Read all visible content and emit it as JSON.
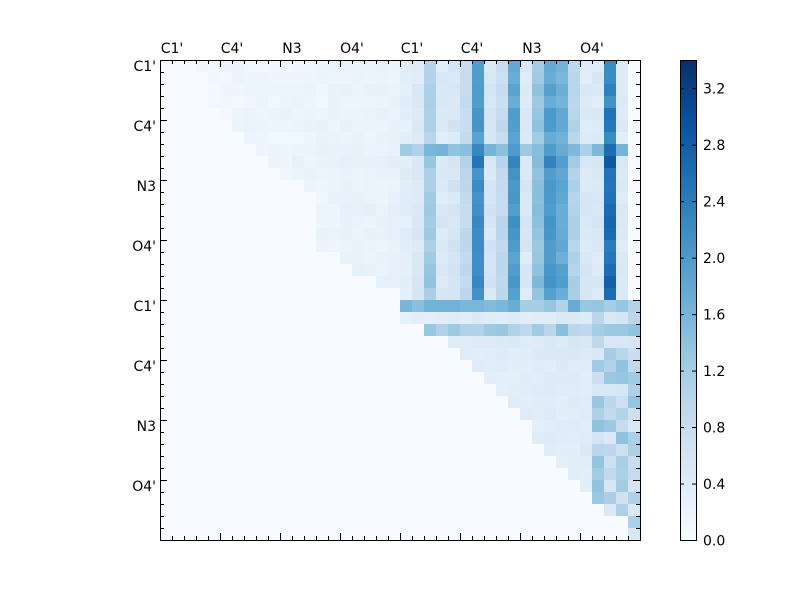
{
  "chart_data": {
    "type": "heatmap",
    "grid_size": 40,
    "tick_spacing": 5,
    "x_tick_labels": [
      "C1'",
      "C4'",
      "N3",
      "O4'",
      "C1'",
      "C4'",
      "N3",
      "O4'"
    ],
    "y_tick_labels": [
      "C1'",
      "C4'",
      "N3",
      "O4'",
      "C1'",
      "C4'",
      "N3",
      "O4'"
    ],
    "x_tick_label_position": "top",
    "y_tick_label_position": "left",
    "colormap": {
      "name": "Blues",
      "stops": [
        "#f7fbff",
        "#deebf7",
        "#c6dbef",
        "#9ecae1",
        "#6baed6",
        "#4292c6",
        "#2171b5",
        "#08519c",
        "#08306b"
      ]
    },
    "value_range": [
      0.0,
      3.4
    ],
    "colorbar": {
      "position": "right",
      "tick_values": [
        0.0,
        0.4,
        0.8,
        1.2,
        1.6,
        2.0,
        2.4,
        2.8,
        3.2
      ],
      "tick_labels": [
        "0.0",
        "0.4",
        "0.8",
        "1.2",
        "1.6",
        "2.0",
        "2.4",
        "2.8",
        "3.2"
      ]
    },
    "row_ranges": [
      [
        3,
        38
      ],
      [
        4,
        38
      ],
      [
        4,
        38
      ],
      [
        4,
        38
      ],
      [
        5,
        38
      ],
      [
        6,
        38
      ],
      [
        7,
        38
      ],
      [
        8,
        38
      ],
      [
        9,
        38
      ],
      [
        10,
        38
      ],
      [
        12,
        38
      ],
      [
        13,
        38
      ],
      [
        13,
        38
      ],
      [
        13,
        38
      ],
      [
        13,
        38
      ],
      [
        13,
        38
      ],
      [
        15,
        38
      ],
      [
        16,
        38
      ],
      [
        18,
        38
      ],
      [
        20,
        38
      ],
      [
        20,
        39
      ],
      [
        20,
        39
      ],
      [
        22,
        39
      ],
      [
        24,
        39
      ],
      [
        25,
        39
      ],
      [
        26,
        39
      ],
      [
        27,
        39
      ],
      [
        28,
        39
      ],
      [
        29,
        39
      ],
      [
        30,
        39
      ],
      [
        31,
        39
      ],
      [
        31,
        39
      ],
      [
        32,
        39
      ],
      [
        33,
        39
      ],
      [
        34,
        39
      ],
      [
        35,
        39
      ],
      [
        36,
        39
      ],
      [
        37,
        39
      ],
      [
        39,
        39
      ],
      [
        39,
        39
      ]
    ],
    "base_tint": [
      0.05,
      0.06,
      0.07,
      0.08,
      0.08,
      0.09,
      0.1,
      0.1,
      0.11,
      0.12,
      0.12,
      0.13,
      0.14,
      0.14,
      0.15,
      0.16,
      0.17,
      0.18,
      0.18,
      0.19,
      0.2,
      0.21,
      0.22,
      0.23,
      0.24,
      0.25,
      0.26,
      0.27,
      0.28,
      0.29,
      0.3,
      0.31,
      0.32,
      0.33,
      0.34,
      0.35,
      0.36,
      0.37,
      0.38,
      0.39
    ],
    "column_intensity": [
      0,
      0,
      0,
      0,
      0,
      0,
      0,
      0,
      0,
      0,
      0,
      0,
      0,
      0,
      0,
      0,
      0,
      0,
      0,
      0,
      0.3,
      0.5,
      1.4,
      0.5,
      0.6,
      1.0,
      2.6,
      0.6,
      1.0,
      2.4,
      0.5,
      1.6,
      2.4,
      2.1,
      1.2,
      0.5,
      0.5,
      3.1,
      0.4,
      0.3
    ],
    "row_intensity": [
      0.35,
      0.35,
      0.45,
      0.3,
      0.5,
      0.5,
      0.35,
      0.6,
      0.75,
      0.55,
      0.55,
      0.5,
      0.55,
      0.6,
      0.55,
      0.5,
      0.5,
      0.6,
      0.65,
      0.55,
      0.85,
      0.7,
      0.85,
      0.8,
      0.65,
      0.6,
      0.5,
      0.5,
      0.45,
      0.5,
      0.45,
      0.45,
      0.5,
      0.45,
      0.5,
      0.45,
      0.45,
      0.4,
      0.4,
      0.4
    ],
    "band_rows": [
      {
        "row": 7,
        "x_start": 20,
        "x_end": 38,
        "value": 1.3
      },
      {
        "row": 20,
        "x_start": 20,
        "x_end": 39,
        "value": 1.4
      },
      {
        "row": 22,
        "x_start": 20,
        "x_end": 39,
        "value": 1.2
      }
    ],
    "lower_region_value": 0.0
  }
}
